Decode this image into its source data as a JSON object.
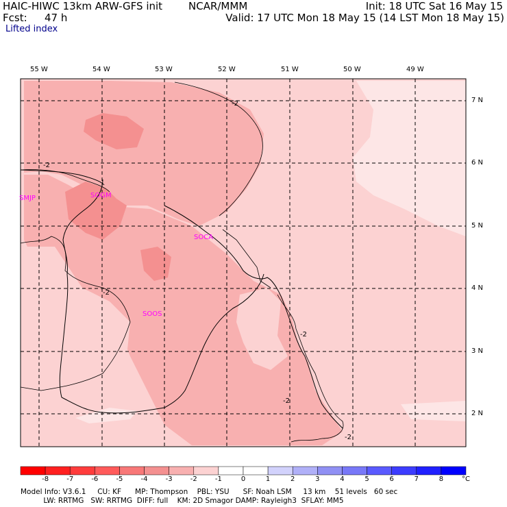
{
  "header": {
    "model_line": "HAIC-HIWC 13km ARW-GFS init",
    "center": "NCAR/MMM",
    "init": "Init: 18 UTC Sat 16 May 15",
    "fcst_label": "Fcst:",
    "fcst_value": "47 h",
    "valid": "Valid: 17 UTC Mon 18 May 15 (14 LST Mon 18 May 15)",
    "field": "Lifted index"
  },
  "map": {
    "lon_labels": [
      "55 W",
      "54 W",
      "53 W",
      "52 W",
      "51 W",
      "50 W",
      "49 W"
    ],
    "lat_labels": [
      "7 N",
      "6 N",
      "5 N",
      "4 N",
      "3 N",
      "2 N"
    ],
    "stations": [
      "SMJP",
      "SOGM",
      "SOCA",
      "SOOS"
    ],
    "contour_labels": [
      "-2",
      "-2",
      "-2",
      "-2",
      "-2",
      "-2"
    ]
  },
  "colorbar": {
    "ticks": [
      "-8",
      "-7",
      "-6",
      "-5",
      "-4",
      "-3",
      "-2",
      "-1",
      "0",
      "1",
      "2",
      "3",
      "4",
      "5",
      "6",
      "7",
      "8"
    ],
    "unit": "°C",
    "colors": [
      "#ff0000",
      "#ff2020",
      "#ff3c3c",
      "#ff5a5a",
      "#f87878",
      "#f49090",
      "#f8b0b0",
      "#fcd2d2",
      "#ffffff",
      "#ffffff",
      "#d2d2fc",
      "#b0b0f8",
      "#9090f4",
      "#7878f8",
      "#5a5aff",
      "#3c3cff",
      "#2020ff",
      "#0000ff"
    ]
  },
  "footer": {
    "line1": "Model Info: V3.6.1     CU: KF      MP: Thompson    PBL: YSU      SF: Noah LSM     13 km    51 levels   60 sec",
    "line2": "          LW: RRTMG   SW: RRTMG  DIFF: full    KM: 2D Smagor DAMP: Rayleigh3  SFLAY: MM5"
  }
}
